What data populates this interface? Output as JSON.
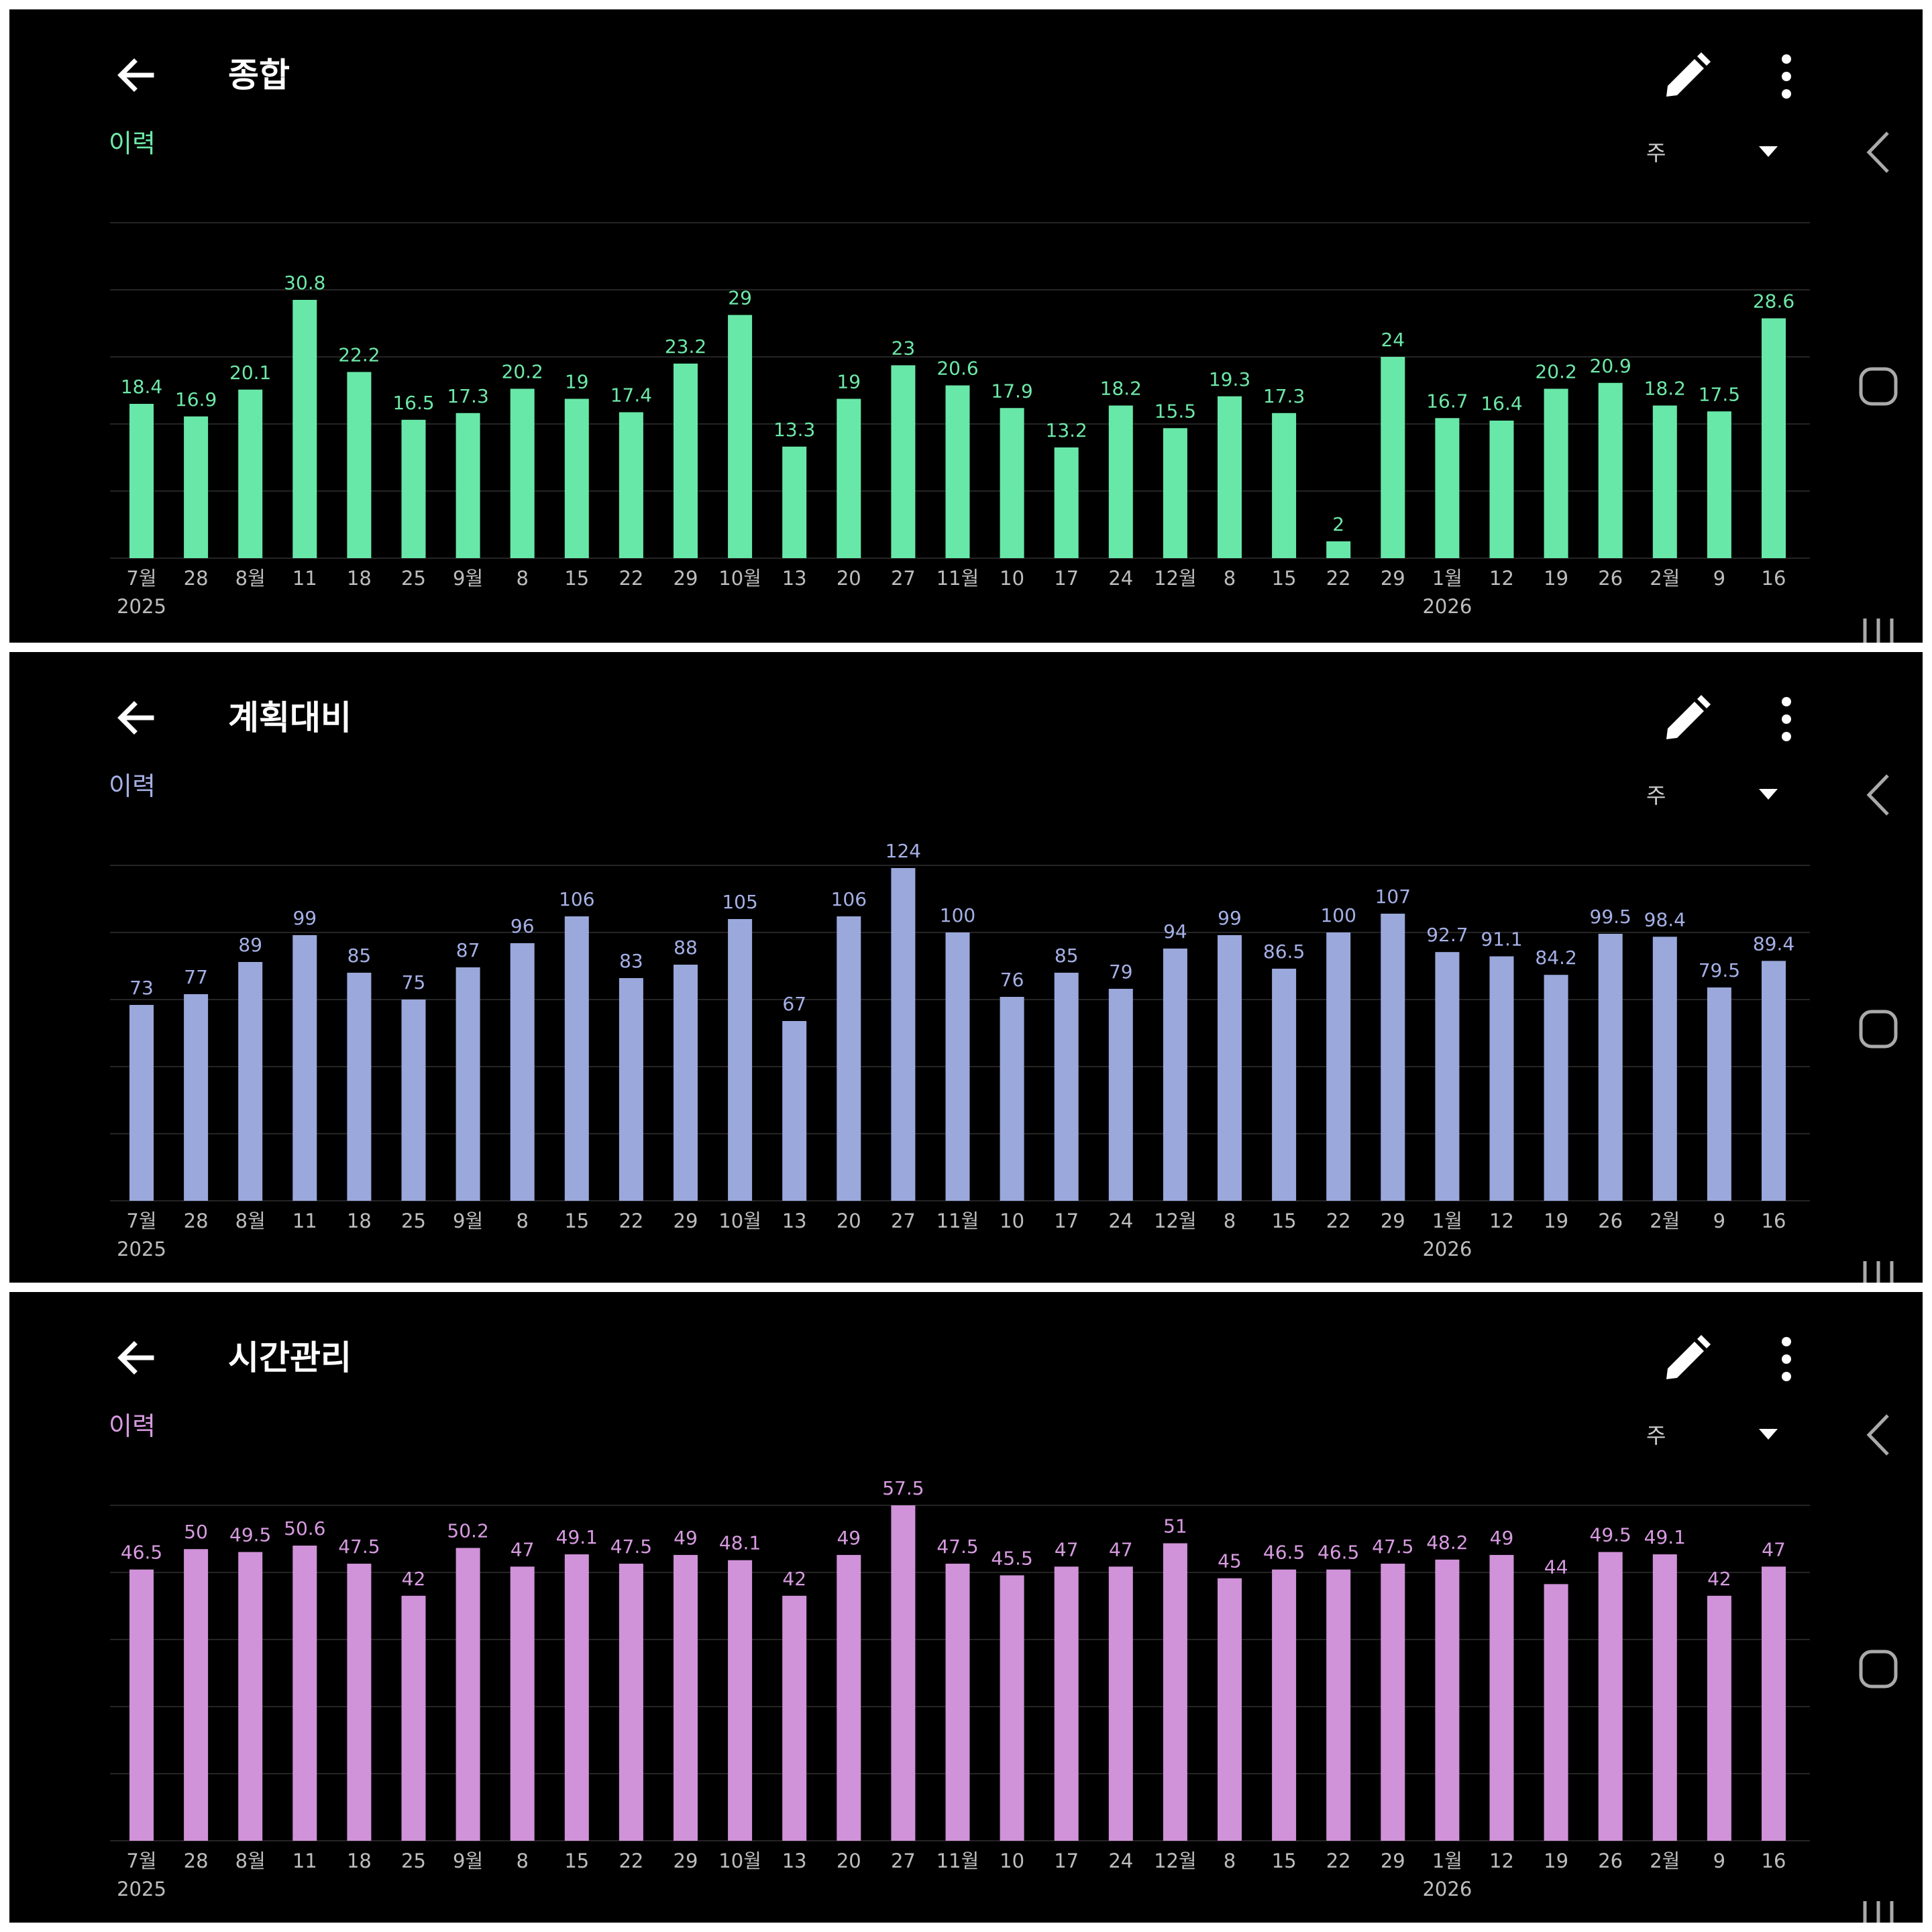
{
  "panels": [
    {
      "title": "종합",
      "history_label": "이력",
      "period": "주",
      "accent": "#68e8a8",
      "label_color": "#6ee8a8",
      "chart_data": {
        "type": "bar",
        "categories": [
          "7월",
          "28",
          "8월",
          "11",
          "18",
          "25",
          "9월",
          "8",
          "15",
          "22",
          "29",
          "10월",
          "13",
          "20",
          "27",
          "11월",
          "10",
          "17",
          "24",
          "12월",
          "8",
          "15",
          "22",
          "29",
          "1월",
          "12",
          "19",
          "26",
          "2월",
          "9",
          "16"
        ],
        "year_labels": [
          {
            "index": 0,
            "text": "2025"
          },
          {
            "index": 24,
            "text": "2026"
          }
        ],
        "values": [
          18.4,
          16.9,
          20.1,
          30.8,
          22.2,
          16.5,
          17.3,
          20.2,
          19,
          17.4,
          23.2,
          29,
          13.3,
          19,
          23,
          20.6,
          17.9,
          13.2,
          18.2,
          15.5,
          19.3,
          17.3,
          2,
          24,
          16.7,
          16.4,
          20.2,
          20.9,
          18.2,
          17.5,
          28.6
        ],
        "ylim": [
          0,
          40
        ],
        "grid": true
      }
    },
    {
      "title": "계획대비",
      "history_label": "이력",
      "period": "주",
      "accent": "#9aa8dc",
      "label_color": "#a5b0e6",
      "chart_data": {
        "type": "bar",
        "categories": [
          "7월",
          "28",
          "8월",
          "11",
          "18",
          "25",
          "9월",
          "8",
          "15",
          "22",
          "29",
          "10월",
          "13",
          "20",
          "27",
          "11월",
          "10",
          "17",
          "24",
          "12월",
          "8",
          "15",
          "22",
          "29",
          "1월",
          "12",
          "19",
          "26",
          "2월",
          "9",
          "16"
        ],
        "year_labels": [
          {
            "index": 0,
            "text": "2025"
          },
          {
            "index": 24,
            "text": "2026"
          }
        ],
        "values": [
          73,
          77,
          89,
          99,
          85,
          75,
          87,
          96,
          106,
          83,
          88,
          105,
          67,
          106,
          124,
          100,
          76,
          85,
          79,
          94,
          99,
          86.5,
          100,
          107,
          92.7,
          91.1,
          84.2,
          99.5,
          98.4,
          79.5,
          89.4
        ],
        "ylim": [
          0,
          125
        ],
        "grid": true
      }
    },
    {
      "title": "시간관리",
      "history_label": "이력",
      "period": "주",
      "accent": "#d092d8",
      "label_color": "#d79be0",
      "chart_data": {
        "type": "bar",
        "categories": [
          "7월",
          "28",
          "8월",
          "11",
          "18",
          "25",
          "9월",
          "8",
          "15",
          "22",
          "29",
          "10월",
          "13",
          "20",
          "27",
          "11월",
          "10",
          "17",
          "24",
          "12월",
          "8",
          "15",
          "22",
          "29",
          "1월",
          "12",
          "19",
          "26",
          "2월",
          "9",
          "16"
        ],
        "year_labels": [
          {
            "index": 0,
            "text": "2025"
          },
          {
            "index": 24,
            "text": "2026"
          }
        ],
        "values": [
          46.5,
          50,
          49.5,
          50.6,
          47.5,
          42,
          50.2,
          47,
          49.1,
          47.5,
          49,
          48.1,
          42,
          49,
          57.5,
          47.5,
          45.5,
          47,
          47,
          51,
          45,
          46.5,
          46.5,
          47.5,
          48.2,
          49,
          44,
          49.5,
          49.1,
          42,
          47
        ],
        "ylim": [
          0,
          57.5
        ],
        "grid": true
      }
    }
  ]
}
